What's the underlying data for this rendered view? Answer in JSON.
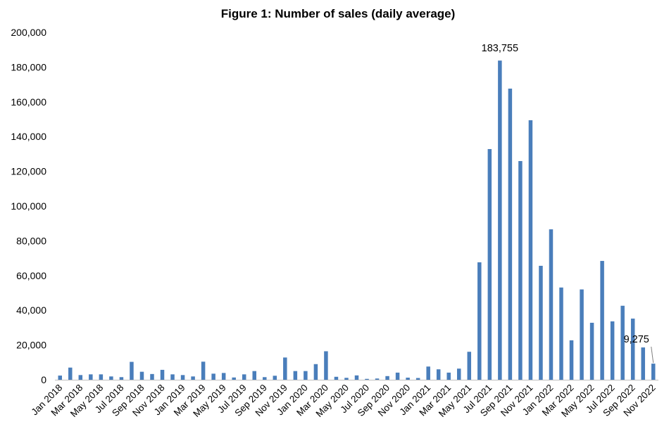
{
  "chart_data": {
    "type": "bar",
    "title": "Figure 1: Number of sales (daily average)",
    "xlabel": "",
    "ylabel": "",
    "ylim": [
      0,
      200000
    ],
    "yticks": [
      0,
      20000,
      40000,
      60000,
      80000,
      100000,
      120000,
      140000,
      160000,
      180000,
      200000
    ],
    "ytick_labels": [
      "0",
      "20,000",
      "40,000",
      "60,000",
      "80,000",
      "100,000",
      "120,000",
      "140,000",
      "160,000",
      "180,000",
      "200,000"
    ],
    "grid": false,
    "legend": "none",
    "bar_color": "#4a7ebb",
    "categories": [
      "Jan 2018",
      "Feb 2018",
      "Mar 2018",
      "Apr 2018",
      "May 2018",
      "Jun 2018",
      "Jul 2018",
      "Aug 2018",
      "Sep 2018",
      "Oct 2018",
      "Nov 2018",
      "Dec 2018",
      "Jan 2019",
      "Feb 2019",
      "Mar 2019",
      "Apr 2019",
      "May 2019",
      "Jun 2019",
      "Jul 2019",
      "Aug 2019",
      "Sep 2019",
      "Oct 2019",
      "Nov 2019",
      "Dec 2019",
      "Jan 2020",
      "Feb 2020",
      "Mar 2020",
      "Apr 2020",
      "May 2020",
      "Jun 2020",
      "Jul 2020",
      "Aug 2020",
      "Sep 2020",
      "Oct 2020",
      "Nov 2020",
      "Dec 2020",
      "Jan 2021",
      "Feb 2021",
      "Mar 2021",
      "Apr 2021",
      "May 2021",
      "Jun 2021",
      "Jul 2021",
      "Aug 2021",
      "Sep 2021",
      "Oct 2021",
      "Nov 2021",
      "Dec 2021",
      "Jan 2022",
      "Feb 2022",
      "Mar 2022",
      "Apr 2022",
      "May 2022",
      "Jun 2022",
      "Jul 2022",
      "Aug 2022",
      "Sep 2022",
      "Oct 2022",
      "Nov 2022"
    ],
    "visible_tick_labels": [
      "Jan 2018",
      "Mar 2018",
      "May 2018",
      "Jul 2018",
      "Sep 2018",
      "Nov 2018",
      "Jan 2019",
      "Mar 2019",
      "May 2019",
      "Jul 2019",
      "Sep 2019",
      "Nov 2019",
      "Jan 2020",
      "Mar 2020",
      "May 2020",
      "Jul 2020",
      "Sep 2020",
      "Nov 2020",
      "Jan 2021",
      "Mar 2021",
      "May 2021",
      "Jul 2021",
      "Sep 2021",
      "Nov 2021",
      "Jan 2022",
      "Mar 2022",
      "May 2022",
      "Jul 2022",
      "Sep 2022",
      "Nov 2022"
    ],
    "values": [
      2400,
      7000,
      2700,
      3100,
      3100,
      1900,
      1500,
      10300,
      4600,
      3300,
      5700,
      3100,
      2700,
      1900,
      10400,
      3500,
      3900,
      1300,
      3100,
      5000,
      1500,
      2300,
      12800,
      5000,
      5000,
      9000,
      16400,
      1700,
      1100,
      2500,
      500,
      700,
      2100,
      4100,
      1200,
      1000,
      7600,
      6000,
      4100,
      6400,
      16100,
      67600,
      132800,
      183755,
      167600,
      125900,
      149400,
      65600,
      86600,
      53100,
      22700,
      52000,
      32800,
      68400,
      33600,
      42600,
      35200,
      18600,
      9275
    ],
    "annotations": [
      {
        "category": "Aug 2021",
        "text": "183,755"
      },
      {
        "category": "Nov 2022",
        "text": "9,275"
      }
    ]
  }
}
